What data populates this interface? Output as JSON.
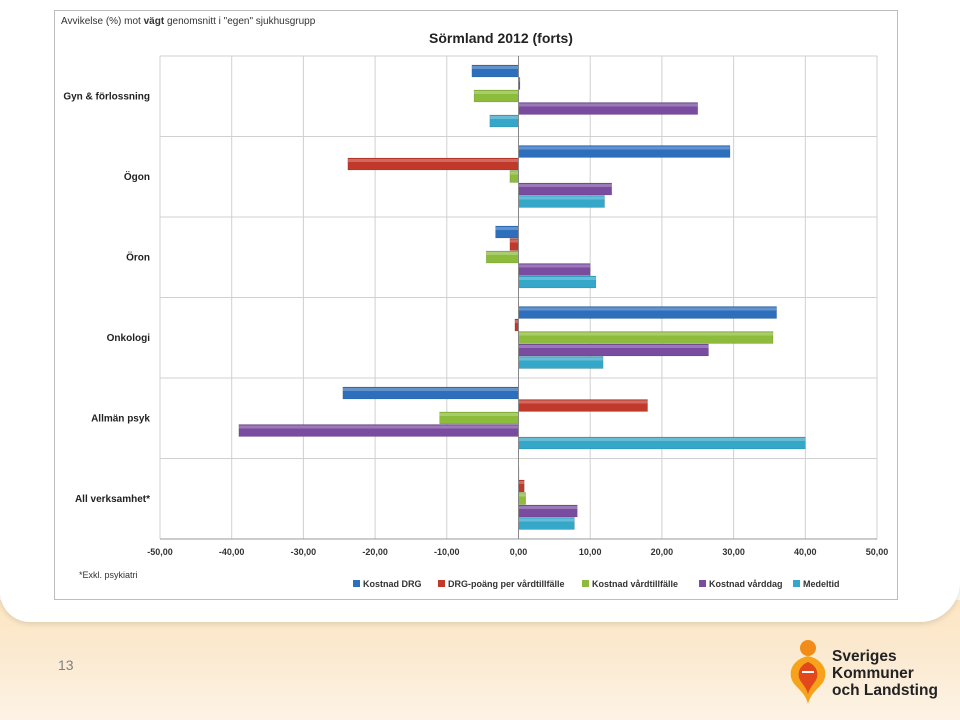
{
  "slide": {
    "number": "13"
  },
  "logo": {
    "line1": "Sveriges",
    "line2": "Kommuner",
    "line3": "och Landsting"
  },
  "chart_data": {
    "type": "bar",
    "orientation": "horizontal",
    "title": "Sörmland 2012 (forts)",
    "subtitle_prefix": "Avvikelse (%) mot ",
    "subtitle_bold": "vägt",
    "subtitle_suffix": " genomsnitt i \"egen\" sjukhusgrupp",
    "footnote": "*Exkl. psykiatri",
    "categories": [
      "Gyn & förlossning",
      "Ögon",
      "Öron",
      "Onkologi",
      "Allmän psyk",
      "All verksamhet*"
    ],
    "xlim": [
      -50,
      50
    ],
    "xticks": [
      "-50,00",
      "-40,00",
      "-30,00",
      "-20,00",
      "-10,00",
      "0,00",
      "10,00",
      "20,00",
      "30,00",
      "40,00",
      "50,00"
    ],
    "grid": true,
    "legend_position": "bottom",
    "series": [
      {
        "name": "Kostnad DRG",
        "color": "#2e6fbd",
        "values": [
          -6.5,
          29.5,
          -3.2,
          36.0,
          -24.5,
          0
        ]
      },
      {
        "name": "DRG-poäng per vårdtillfälle",
        "color": "#c0392b",
        "values": [
          0.2,
          -23.8,
          -1.2,
          -0.5,
          18.0,
          0.8
        ]
      },
      {
        "name": "Kostnad vårdtillfälle",
        "color": "#8dbb3c",
        "values": [
          -6.2,
          -1.2,
          -4.5,
          35.5,
          -11.0,
          1.0
        ]
      },
      {
        "name": "Kostnad vårddag",
        "color": "#7a4ca0",
        "values": [
          25.0,
          13.0,
          10.0,
          26.5,
          -39.0,
          8.2
        ]
      },
      {
        "name": "Medeltid",
        "color": "#35a7c9",
        "values": [
          -4.0,
          12.0,
          10.8,
          11.8,
          40.0,
          7.8
        ]
      }
    ]
  }
}
